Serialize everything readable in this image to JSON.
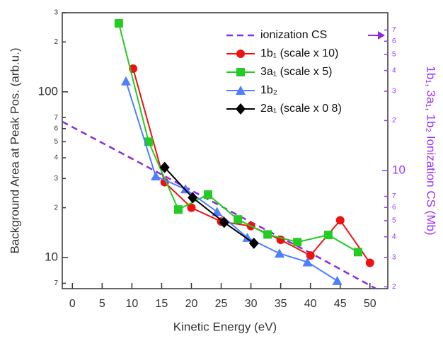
{
  "chart_data": {
    "type": "line",
    "xlabel": "Kinetic Energy (eV)",
    "ylabel": "Background Area at Peak Pos. (arb.u.)",
    "y2label": "1b₁, 3a₁, 1b₂ Ionization CS (Mb)",
    "xlim": [
      -1.7,
      53
    ],
    "xticks": [
      0,
      5,
      10,
      15,
      20,
      25,
      30,
      35,
      40,
      45,
      50
    ],
    "ylim": [
      6.5,
      300
    ],
    "log_y": true,
    "yticks": [
      {
        "value": 300,
        "label": "3"
      },
      {
        "value": 200,
        "label": "2"
      },
      100,
      {
        "value": 70,
        "label": "7"
      },
      {
        "value": 60,
        "label": "6"
      },
      {
        "value": 50,
        "label": "5"
      },
      {
        "value": 40,
        "label": "4"
      },
      {
        "value": 30,
        "label": "3"
      },
      {
        "value": 20,
        "label": "2"
      },
      10,
      {
        "value": 7,
        "label": "7"
      }
    ],
    "y2lim": [
      1.95,
      89
    ],
    "log_y2": true,
    "y2color": "#9933ff",
    "y2ticks": [
      {
        "value": 70,
        "label": "7"
      },
      {
        "value": 60,
        "label": "6"
      },
      {
        "value": 50,
        "label": "5"
      },
      {
        "value": 40,
        "label": "4"
      },
      {
        "value": 30,
        "label": "3"
      },
      {
        "value": 20,
        "label": "2"
      },
      10,
      {
        "value": 7,
        "label": "7"
      },
      {
        "value": 6,
        "label": "6"
      },
      {
        "value": 5,
        "label": "5"
      },
      {
        "value": 4,
        "label": "4"
      },
      {
        "value": 3,
        "label": "3"
      },
      {
        "value": 2,
        "label": "2"
      }
    ],
    "legend": "upper right",
    "series": [
      {
        "name": "ionization CS",
        "color": "#8a2be2",
        "dashed": true,
        "axis": "y2",
        "marker": "none",
        "x": [
          -1.7,
          10,
          20,
          30,
          40,
          51
        ],
        "values": [
          19.7,
          11.8,
          7.6,
          4.9,
          3.2,
          1.95
        ]
      },
      {
        "name": "1b₁ (scale x 10)",
        "color": "#ee1111",
        "marker": "circle",
        "x": [
          10.2,
          15.5,
          20,
          25,
          30,
          35,
          40,
          45,
          50
        ],
        "values": [
          138,
          28.5,
          20,
          16.5,
          15.5,
          12.8,
          10.3,
          16.8,
          9.3
        ]
      },
      {
        "name": "3a₁ (scale x 5)",
        "color": "#22cc22",
        "marker": "square",
        "x": [
          7.8,
          12.8,
          17.8,
          22.8,
          27.8,
          32.8,
          37.8,
          43,
          48
        ],
        "values": [
          259,
          50,
          19.5,
          24,
          17,
          13.8,
          12.4,
          13.7,
          10.8
        ]
      },
      {
        "name": "1b₂",
        "color": "#4d7fff",
        "marker": "triangle",
        "x": [
          9,
          14,
          19,
          24.3,
          29.4,
          34.8,
          39.5,
          44.5
        ],
        "values": [
          116,
          31,
          25.9,
          18.9,
          13.2,
          10.6,
          9.4,
          7.25
        ]
      },
      {
        "name": "2a₁ (scale x 0 8)",
        "color": "#000000",
        "marker": "diamond",
        "x": [
          15.5,
          20.2,
          25.5,
          30.5
        ],
        "values": [
          35,
          23,
          16.3,
          12.2
        ]
      }
    ]
  }
}
